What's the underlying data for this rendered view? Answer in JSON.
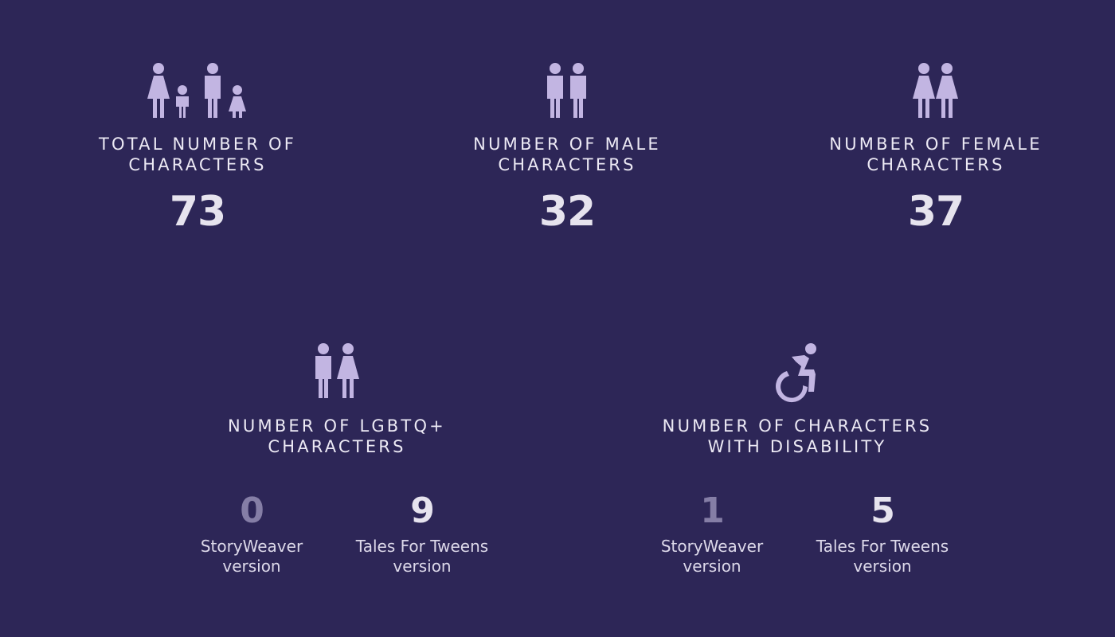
{
  "stats": [
    {
      "icon": "family-icon",
      "label_line1": "TOTAL NUMBER OF",
      "label_line2": "CHARACTERS",
      "value": "73"
    },
    {
      "icon": "two-men-icon",
      "label_line1": "NUMBER OF MALE",
      "label_line2": "CHARACTERS",
      "value": "32"
    },
    {
      "icon": "two-women-icon",
      "label_line1": "NUMBER OF FEMALE",
      "label_line2": "CHARACTERS",
      "value": "37"
    }
  ],
  "lgbtq": {
    "icon": "man-woman-icon",
    "label_line1": "NUMBER OF LGBTQ+",
    "label_line2": "CHARACTERS",
    "storyweaver_value": "0",
    "storyweaver_caption_line1": "StoryWeaver",
    "storyweaver_caption_line2": "version",
    "tweens_value": "9",
    "tweens_caption_line1": "Tales For Tweens",
    "tweens_caption_line2": "version"
  },
  "disability": {
    "icon": "wheelchair-icon",
    "label_line1": "NUMBER OF CHARACTERS",
    "label_line2": "WITH DISABILITY",
    "storyweaver_value": "1",
    "storyweaver_caption_line1": "StoryWeaver",
    "storyweaver_caption_line2": "version",
    "tweens_value": "5",
    "tweens_caption_line1": "Tales For Tweens",
    "tweens_caption_line2": "version"
  },
  "colors": {
    "background": "#2d2657",
    "icon": "#c2b5e2",
    "text": "#ece9f4",
    "muted_number": "#857ea6"
  }
}
